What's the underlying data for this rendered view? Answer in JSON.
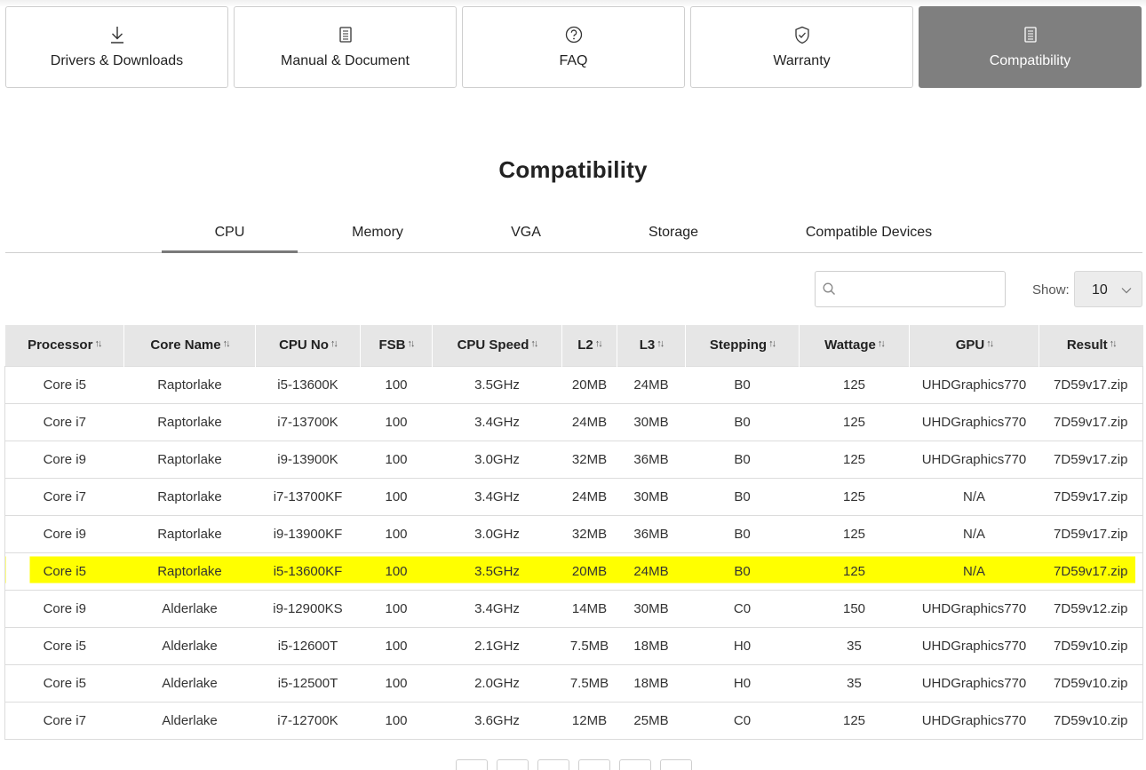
{
  "cards": [
    {
      "label": "Drivers & Downloads",
      "icon": "download-icon"
    },
    {
      "label": "Manual & Document",
      "icon": "document-icon"
    },
    {
      "label": "FAQ",
      "icon": "question-icon"
    },
    {
      "label": "Warranty",
      "icon": "shield-check-icon"
    },
    {
      "label": "Compatibility",
      "icon": "document-icon",
      "active": true
    }
  ],
  "page_title": "Compatibility",
  "tabs": [
    {
      "label": "CPU",
      "active": true
    },
    {
      "label": "Memory"
    },
    {
      "label": "VGA"
    },
    {
      "label": "Storage"
    },
    {
      "label": "Compatible Devices"
    }
  ],
  "search": {
    "placeholder": "",
    "value": ""
  },
  "show": {
    "label": "Show:",
    "value": "10"
  },
  "table": {
    "headers": [
      "Processor",
      "Core Name",
      "CPU No",
      "FSB",
      "CPU Speed",
      "L2",
      "L3",
      "Stepping",
      "Wattage",
      "GPU",
      "Result"
    ],
    "rows": [
      [
        "Core i5",
        "Raptorlake",
        "i5-13600K",
        "100",
        "3.5GHz",
        "20MB",
        "24MB",
        "B0",
        "125",
        "UHDGraphics770",
        "7D59v17.zip"
      ],
      [
        "Core i7",
        "Raptorlake",
        "i7-13700K",
        "100",
        "3.4GHz",
        "24MB",
        "30MB",
        "B0",
        "125",
        "UHDGraphics770",
        "7D59v17.zip"
      ],
      [
        "Core i9",
        "Raptorlake",
        "i9-13900K",
        "100",
        "3.0GHz",
        "32MB",
        "36MB",
        "B0",
        "125",
        "UHDGraphics770",
        "7D59v17.zip"
      ],
      [
        "Core i7",
        "Raptorlake",
        "i7-13700KF",
        "100",
        "3.4GHz",
        "24MB",
        "30MB",
        "B0",
        "125",
        "N/A",
        "7D59v17.zip"
      ],
      [
        "Core i9",
        "Raptorlake",
        "i9-13900KF",
        "100",
        "3.0GHz",
        "32MB",
        "36MB",
        "B0",
        "125",
        "N/A",
        "7D59v17.zip"
      ],
      [
        "Core i5",
        "Raptorlake",
        "i5-13600KF",
        "100",
        "3.5GHz",
        "20MB",
        "24MB",
        "B0",
        "125",
        "N/A",
        "7D59v17.zip"
      ],
      [
        "Core i9",
        "Alderlake",
        "i9-12900KS",
        "100",
        "3.4GHz",
        "14MB",
        "30MB",
        "C0",
        "150",
        "UHDGraphics770",
        "7D59v12.zip"
      ],
      [
        "Core i5",
        "Alderlake",
        "i5-12600T",
        "100",
        "2.1GHz",
        "7.5MB",
        "18MB",
        "H0",
        "35",
        "UHDGraphics770",
        "7D59v10.zip"
      ],
      [
        "Core i5",
        "Alderlake",
        "i5-12500T",
        "100",
        "2.0GHz",
        "7.5MB",
        "18MB",
        "H0",
        "35",
        "UHDGraphics770",
        "7D59v10.zip"
      ],
      [
        "Core i7",
        "Alderlake",
        "i7-12700K",
        "100",
        "3.6GHz",
        "12MB",
        "25MB",
        "C0",
        "125",
        "UHDGraphics770",
        "7D59v10.zip"
      ]
    ],
    "highlighted_row": 5,
    "highlight_color": "#ffff00"
  },
  "colors": {
    "active_card": "#7f7f7f",
    "header_bg": "#e6e6e6",
    "tab_underline": "#7a7a7a"
  }
}
